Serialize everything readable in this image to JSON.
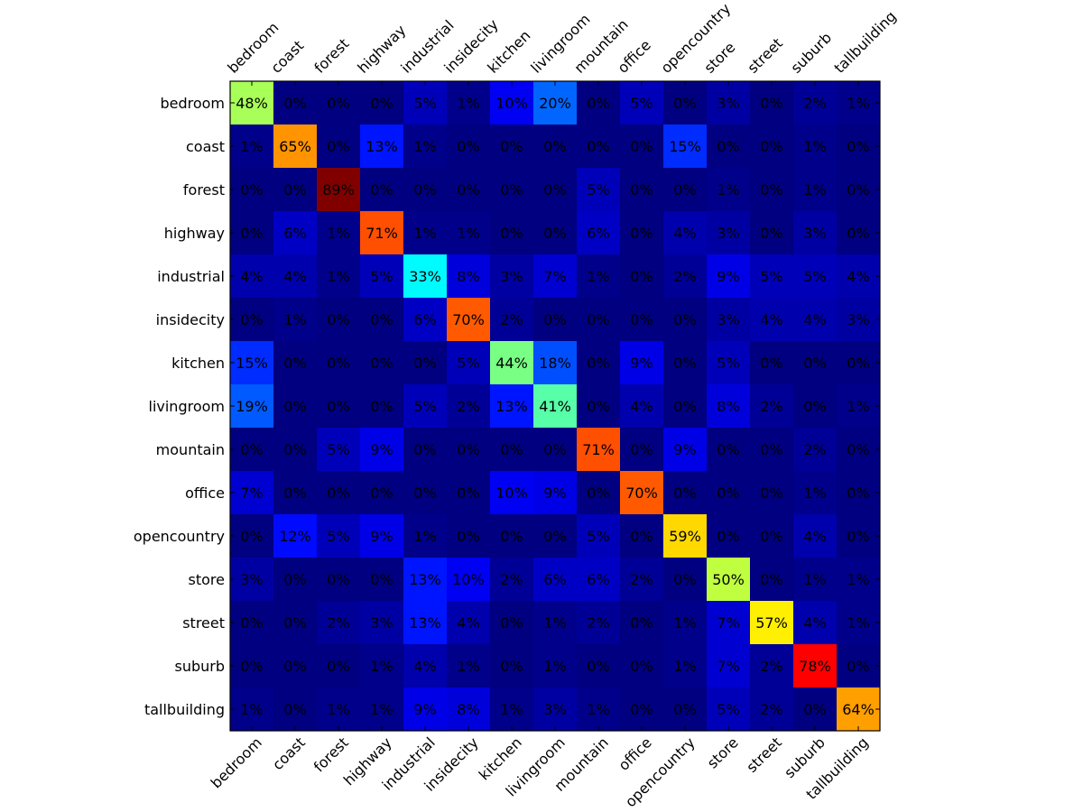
{
  "chart_data": {
    "type": "heatmap",
    "title": "",
    "xlabel": "",
    "ylabel": "",
    "colormap": "jet",
    "value_range": [
      0,
      100
    ],
    "value_suffix": "%",
    "x_ticks_position": "top-and-bottom",
    "grid": false,
    "legend": "none",
    "categories": [
      "bedroom",
      "coast",
      "forest",
      "highway",
      "industrial",
      "insidecity",
      "kitchen",
      "livingroom",
      "mountain",
      "office",
      "opencountry",
      "store",
      "street",
      "suburb",
      "tallbuilding"
    ],
    "values": [
      [
        48,
        0,
        0,
        0,
        5,
        1,
        10,
        20,
        0,
        5,
        0,
        3,
        0,
        2,
        1
      ],
      [
        1,
        65,
        0,
        13,
        1,
        0,
        0,
        0,
        0,
        0,
        15,
        0,
        0,
        1,
        0
      ],
      [
        0,
        0,
        89,
        0,
        0,
        0,
        0,
        0,
        5,
        0,
        0,
        1,
        0,
        1,
        0
      ],
      [
        0,
        6,
        1,
        71,
        1,
        1,
        0,
        0,
        6,
        0,
        4,
        3,
        0,
        3,
        0
      ],
      [
        4,
        4,
        1,
        5,
        33,
        8,
        3,
        7,
        1,
        0,
        2,
        9,
        5,
        5,
        4
      ],
      [
        0,
        1,
        0,
        0,
        6,
        70,
        2,
        0,
        0,
        0,
        0,
        3,
        4,
        4,
        3
      ],
      [
        15,
        0,
        0,
        0,
        0,
        5,
        44,
        18,
        0,
        9,
        0,
        5,
        0,
        0,
        0
      ],
      [
        19,
        0,
        0,
        0,
        5,
        2,
        13,
        41,
        0,
        4,
        0,
        8,
        2,
        0,
        1
      ],
      [
        0,
        0,
        5,
        9,
        0,
        0,
        0,
        0,
        71,
        0,
        9,
        0,
        0,
        2,
        0
      ],
      [
        7,
        0,
        0,
        0,
        0,
        0,
        10,
        9,
        0,
        70,
        0,
        0,
        0,
        1,
        0
      ],
      [
        0,
        12,
        5,
        9,
        1,
        0,
        0,
        0,
        5,
        0,
        59,
        0,
        0,
        4,
        0
      ],
      [
        3,
        0,
        0,
        0,
        13,
        10,
        2,
        6,
        6,
        2,
        0,
        50,
        0,
        1,
        1
      ],
      [
        0,
        0,
        2,
        3,
        13,
        4,
        0,
        1,
        2,
        0,
        1,
        7,
        57,
        4,
        1
      ],
      [
        0,
        0,
        0,
        1,
        4,
        1,
        0,
        1,
        0,
        0,
        1,
        7,
        2,
        78,
        0
      ],
      [
        1,
        0,
        1,
        1,
        9,
        8,
        1,
        3,
        1,
        0,
        0,
        5,
        2,
        0,
        64
      ]
    ]
  }
}
